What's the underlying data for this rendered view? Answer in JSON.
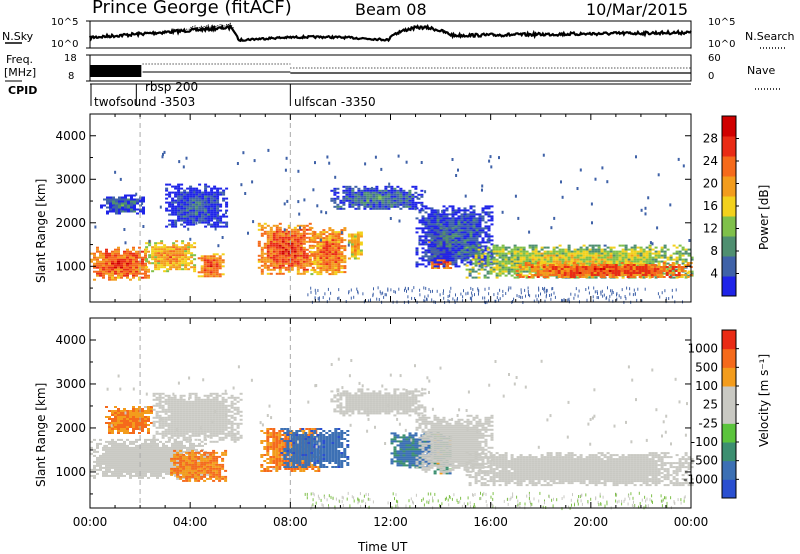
{
  "header": {
    "station": "Prince George (fitACF)",
    "beam": "Beam 08",
    "date": "10/Mar/2015"
  },
  "noise_panel": {
    "left_label": "N.Sky",
    "right_label": "N.Search",
    "left_ticks": [
      "10^5",
      "10^0"
    ],
    "right_ticks": [
      "10^5",
      "10^0"
    ]
  },
  "freq_panel": {
    "left_label_1": "Freq.",
    "left_label_2": "[MHz]",
    "left_ticks": [
      "18",
      "8"
    ],
    "right_label": "Nave",
    "right_ticks": [
      "60",
      "0"
    ]
  },
  "cpid_panel": {
    "label": "CPID",
    "programs": [
      {
        "name": "twofsound",
        "id": "-3503",
        "start_hour": 0
      },
      {
        "name": "rbsp",
        "id": "200",
        "start_hour": 1.85
      },
      {
        "name": "ulfscan",
        "id": "-3350",
        "start_hour": 8.0
      }
    ]
  },
  "chart_data": [
    {
      "type": "heatmap",
      "title": "",
      "xlabel": "Time UT",
      "ylabel": "Slant Range [km]",
      "x_ticks": [
        "00:00",
        "04:00",
        "08:00",
        "12:00",
        "16:00",
        "20:00",
        "00:00"
      ],
      "x_range_hours": [
        0,
        24
      ],
      "y_ticks": [
        "1000",
        "2000",
        "3000",
        "4000"
      ],
      "ylim": [
        180,
        4500
      ],
      "colorbar": {
        "label": "Power [dB]",
        "ticks": [
          "4",
          "8",
          "12",
          "16",
          "20",
          "24",
          "28"
        ],
        "colors": [
          "#1f24e8",
          "#3f62a8",
          "#4f8f70",
          "#7fc04a",
          "#f3d11c",
          "#f39c1c",
          "#f56a1b",
          "#e92b15",
          "#d00000"
        ]
      },
      "series": [
        {
          "t0": 0.0,
          "t1": 2.3,
          "r0": 700,
          "r1": 1450,
          "level": 27
        },
        {
          "t0": 0.4,
          "t1": 2.1,
          "r0": 2200,
          "r1": 2650,
          "level": 9
        },
        {
          "t0": 2.2,
          "t1": 4.2,
          "r0": 900,
          "r1": 1600,
          "level": 22
        },
        {
          "t0": 3.0,
          "t1": 5.4,
          "r0": 1900,
          "r1": 2900,
          "level": 8
        },
        {
          "t0": 4.3,
          "t1": 5.3,
          "r0": 750,
          "r1": 1300,
          "level": 26
        },
        {
          "t0": 6.7,
          "t1": 8.9,
          "r0": 850,
          "r1": 2000,
          "level": 27
        },
        {
          "t0": 8.8,
          "t1": 10.2,
          "r0": 800,
          "r1": 1900,
          "level": 25
        },
        {
          "t0": 10.3,
          "t1": 10.8,
          "r0": 1200,
          "r1": 1800,
          "level": 22
        },
        {
          "t0": 9.6,
          "t1": 13.3,
          "r0": 2300,
          "r1": 2850,
          "level": 10
        },
        {
          "t0": 13.5,
          "t1": 14.4,
          "r0": 950,
          "r1": 1950,
          "level": 27
        },
        {
          "t0": 13.0,
          "t1": 16.0,
          "r0": 1000,
          "r1": 2400,
          "level": 9
        },
        {
          "t0": 15.0,
          "t1": 24.0,
          "r0": 750,
          "r1": 1500,
          "level": 18
        },
        {
          "t0": 17.0,
          "t1": 24.0,
          "r0": 750,
          "r1": 1100,
          "level": 27
        }
      ]
    },
    {
      "type": "heatmap",
      "title": "",
      "xlabel": "Time UT",
      "ylabel": "Slant Range [km]",
      "x_ticks": [
        "00:00",
        "04:00",
        "08:00",
        "12:00",
        "16:00",
        "20:00",
        "00:00"
      ],
      "x_range_hours": [
        0,
        24
      ],
      "y_ticks": [
        "1000",
        "2000",
        "3000",
        "4000"
      ],
      "ylim": [
        180,
        4500
      ],
      "colorbar": {
        "label": "Velocity [m s⁻¹]",
        "ticks": [
          "1000",
          "500",
          "100",
          "25",
          "-25",
          "-100",
          "-500",
          "-1000"
        ],
        "colors": [
          "#2a4fd0",
          "#3c70b4",
          "#3c8f70",
          "#5bc43c",
          "#c9c9c3",
          "#c9c9c3",
          "#f39c1c",
          "#f56a1b",
          "#e92b15"
        ]
      },
      "series": [
        {
          "t0": 0.0,
          "t1": 4.6,
          "r0": 850,
          "r1": 1750,
          "value": 0
        },
        {
          "t0": 0.6,
          "t1": 2.5,
          "r0": 1900,
          "r1": 2500,
          "value": -300
        },
        {
          "t0": 2.5,
          "t1": 6.0,
          "r0": 1700,
          "r1": 2800,
          "value": 0
        },
        {
          "t0": 3.2,
          "t1": 5.4,
          "r0": 800,
          "r1": 1500,
          "value": -300
        },
        {
          "t0": 6.8,
          "t1": 9.1,
          "r0": 1000,
          "r1": 2000,
          "value": -300
        },
        {
          "t0": 7.6,
          "t1": 10.3,
          "r0": 1100,
          "r1": 2000,
          "value": 600
        },
        {
          "t0": 9.6,
          "t1": 13.4,
          "r0": 2300,
          "r1": 2900,
          "value": 0
        },
        {
          "t0": 12.0,
          "t1": 13.6,
          "r0": 1100,
          "r1": 1900,
          "value": 400
        },
        {
          "t0": 13.6,
          "t1": 14.4,
          "r0": 950,
          "r1": 1900,
          "value": 120
        },
        {
          "t0": 13.0,
          "t1": 16.0,
          "r0": 1000,
          "r1": 2300,
          "value": 0
        },
        {
          "t0": 15.0,
          "t1": 24.0,
          "r0": 700,
          "r1": 1450,
          "value": 0
        }
      ]
    }
  ]
}
